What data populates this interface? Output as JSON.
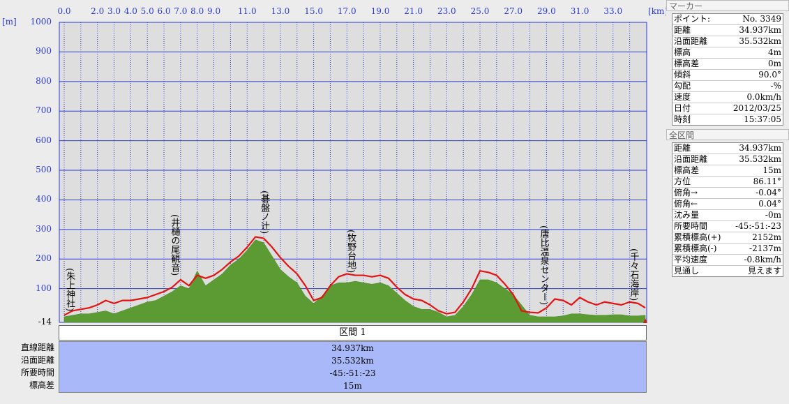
{
  "chart_data": {
    "type": "area",
    "x_unit": "[km]",
    "y_unit": "[m]",
    "x_tick_labels": [
      "0.0",
      "2.0",
      "3.0",
      "4.0",
      "5.0",
      "6.0",
      "7.0",
      "8.0",
      "9.0",
      "11.0",
      "13.0",
      "15.0",
      "17.0",
      "19.0",
      "21.0",
      "23.0",
      "25.0",
      "27.0",
      "29.0",
      "31.0",
      "33.0"
    ],
    "x_ticks": [
      0,
      2,
      3,
      4,
      5,
      6,
      7,
      8,
      9,
      11,
      13,
      15,
      17,
      19,
      21,
      23,
      25,
      27,
      29,
      31,
      33
    ],
    "y_ticks": [
      100,
      200,
      300,
      400,
      500,
      600,
      700,
      800,
      900,
      1000
    ],
    "y_min_label": "-14",
    "ylim": [
      -14,
      1000
    ],
    "xlim": [
      0,
      34.94
    ],
    "colors": {
      "area": "#5c9a34",
      "line": "#e51212",
      "grid": "#2b3bd1",
      "plot_bg": "#dedede"
    },
    "series": [
      {
        "x": [
          0,
          0.5,
          1,
          1.5,
          2,
          2.5,
          3,
          3.5,
          4,
          4.5,
          5,
          5.5,
          6,
          6.5,
          7,
          7.5,
          8,
          8.5,
          9,
          9.5,
          10,
          10.5,
          11,
          11.5,
          12,
          12.5,
          13,
          13.5,
          14,
          14.5,
          15,
          15.5,
          16,
          16.5,
          17,
          17.5,
          18,
          18.5,
          19,
          19.5,
          20,
          20.5,
          21,
          21.5,
          22,
          22.5,
          23,
          23.5,
          24,
          24.5,
          25,
          25.5,
          26,
          26.5,
          27,
          27.5,
          28,
          28.5,
          29,
          29.5,
          30,
          30.5,
          31,
          31.5,
          32,
          32.5,
          33,
          33.5,
          34,
          34.5,
          34.94
        ],
        "terrain": [
          5,
          10,
          15,
          15,
          20,
          25,
          15,
          25,
          35,
          45,
          55,
          60,
          75,
          90,
          110,
          100,
          160,
          110,
          130,
          150,
          180,
          200,
          230,
          265,
          255,
          210,
          165,
          140,
          120,
          75,
          50,
          75,
          110,
          120,
          120,
          125,
          120,
          115,
          120,
          110,
          85,
          60,
          40,
          30,
          30,
          20,
          5,
          10,
          40,
          80,
          130,
          130,
          120,
          100,
          80,
          45,
          10,
          5,
          5,
          5,
          8,
          15,
          15,
          12,
          10,
          10,
          12,
          12,
          8,
          8,
          10
        ],
        "route": [
          10,
          25,
          30,
          35,
          45,
          60,
          50,
          60,
          60,
          65,
          70,
          80,
          90,
          105,
          130,
          110,
          145,
          135,
          145,
          165,
          190,
          210,
          240,
          275,
          270,
          240,
          205,
          175,
          150,
          110,
          60,
          70,
          110,
          140,
          150,
          145,
          145,
          140,
          145,
          135,
          105,
          80,
          65,
          60,
          45,
          25,
          15,
          20,
          55,
          100,
          160,
          155,
          145,
          115,
          80,
          25,
          20,
          18,
          35,
          65,
          60,
          45,
          70,
          55,
          45,
          55,
          50,
          45,
          55,
          50,
          35
        ]
      }
    ]
  },
  "landmarks": [
    {
      "label": "(朱上神社)",
      "km": 0.3,
      "elev": 15
    },
    {
      "label": "(井樋の尾観音)",
      "km": 6.6,
      "elev": 135
    },
    {
      "label": "(碁盤ノ辻)",
      "km": 12.0,
      "elev": 275
    },
    {
      "label": "(牧野台地)",
      "km": 17.2,
      "elev": 145
    },
    {
      "label": "(唐比温泉センター)",
      "km": 28.8,
      "elev": 35
    },
    {
      "label": "(千々石海岸)",
      "km": 34.2,
      "elev": 50
    }
  ],
  "section": {
    "title": "区間 1",
    "rows": [
      {
        "label": "直線距離",
        "value": "34.937km"
      },
      {
        "label": "沿面距離",
        "value": "35.532km"
      },
      {
        "label": "所要時間",
        "value": "-45:-51:-23"
      },
      {
        "label": "標高差",
        "value": "15m"
      }
    ]
  },
  "marker": {
    "title": "マーカー",
    "rows": [
      {
        "label": "ポイント:",
        "value": "No. 3349"
      },
      {
        "label": "距離",
        "value": "34.937km"
      },
      {
        "label": "沿面距離",
        "value": "35.532km"
      },
      {
        "label": "標高",
        "value": "4m"
      },
      {
        "label": "標高差",
        "value": "0m"
      },
      {
        "label": "傾斜",
        "value": "90.0°"
      },
      {
        "label": "勾配",
        "value": "-%"
      },
      {
        "label": "速度",
        "value": "0.0km/h"
      },
      {
        "label": "日付",
        "value": "2012/03/25"
      },
      {
        "label": "時刻",
        "value": "15:37:05"
      }
    ]
  },
  "overall": {
    "title": "全区間",
    "rows": [
      {
        "label": "距離",
        "value": "34.937km"
      },
      {
        "label": "沿面距離",
        "value": "35.532km"
      },
      {
        "label": "標高差",
        "value": "15m"
      },
      {
        "label": "方位",
        "value": "86.11°"
      },
      {
        "label": "俯角→",
        "value": "-0.04°"
      },
      {
        "label": "俯角←",
        "value": "0.04°"
      },
      {
        "label": "沈み量",
        "value": "-0m"
      },
      {
        "label": "所要時間",
        "value": "-45:-51:-23"
      },
      {
        "label": "累積標高(+)",
        "value": "2152m"
      },
      {
        "label": "累積標高(-)",
        "value": "-2137m"
      },
      {
        "label": "平均速度",
        "value": "-0.8km/h"
      },
      {
        "label": "見通し",
        "value": "見えます"
      }
    ]
  }
}
